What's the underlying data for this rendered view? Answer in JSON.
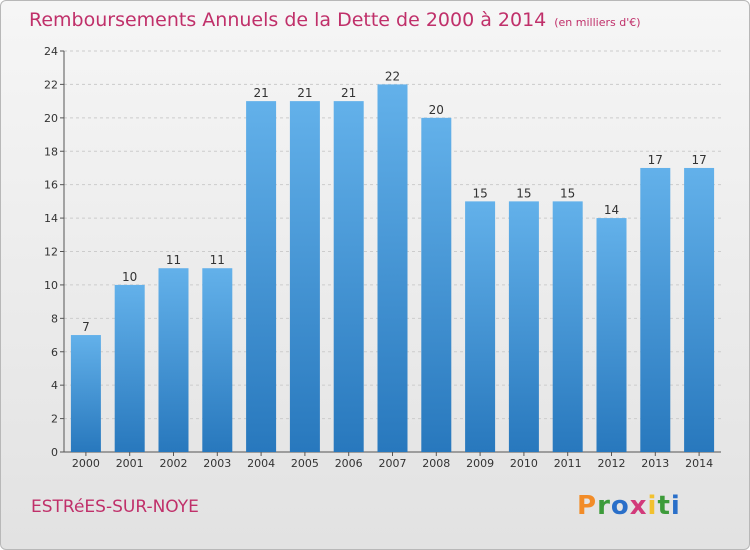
{
  "header": {
    "title": "Remboursements Annuels de la Dette de 2000 à 2014",
    "unit": "(en milliers d'€)"
  },
  "footer": {
    "commune": "ESTRéES-SUR-NOYE",
    "logo_text": "Proxiti"
  },
  "colors": {
    "title": "#c0306a",
    "bar_light": "#63b1ea",
    "bar_dark": "#2878bd",
    "grid": "#cccccc",
    "logo": [
      "#f28c28",
      "#3d9b3a",
      "#2a6fc9",
      "#d23a7a",
      "#f2c12e",
      "#3d9b3a",
      "#2a6fc9"
    ]
  },
  "chart_data": {
    "type": "bar",
    "title": "Remboursements Annuels de la Dette de 2000 à 2014",
    "xlabel": "",
    "ylabel": "",
    "ylim": [
      0,
      24
    ],
    "yticks": [
      0,
      2,
      4,
      6,
      8,
      10,
      12,
      14,
      16,
      18,
      20,
      22,
      24
    ],
    "grid": true,
    "categories": [
      "2000",
      "2001",
      "2002",
      "2003",
      "2004",
      "2005",
      "2006",
      "2007",
      "2008",
      "2009",
      "2010",
      "2011",
      "2012",
      "2013",
      "2014"
    ],
    "values": [
      7,
      10,
      11,
      11,
      21,
      21,
      21,
      22,
      20,
      15,
      15,
      15,
      14,
      17,
      17
    ]
  }
}
